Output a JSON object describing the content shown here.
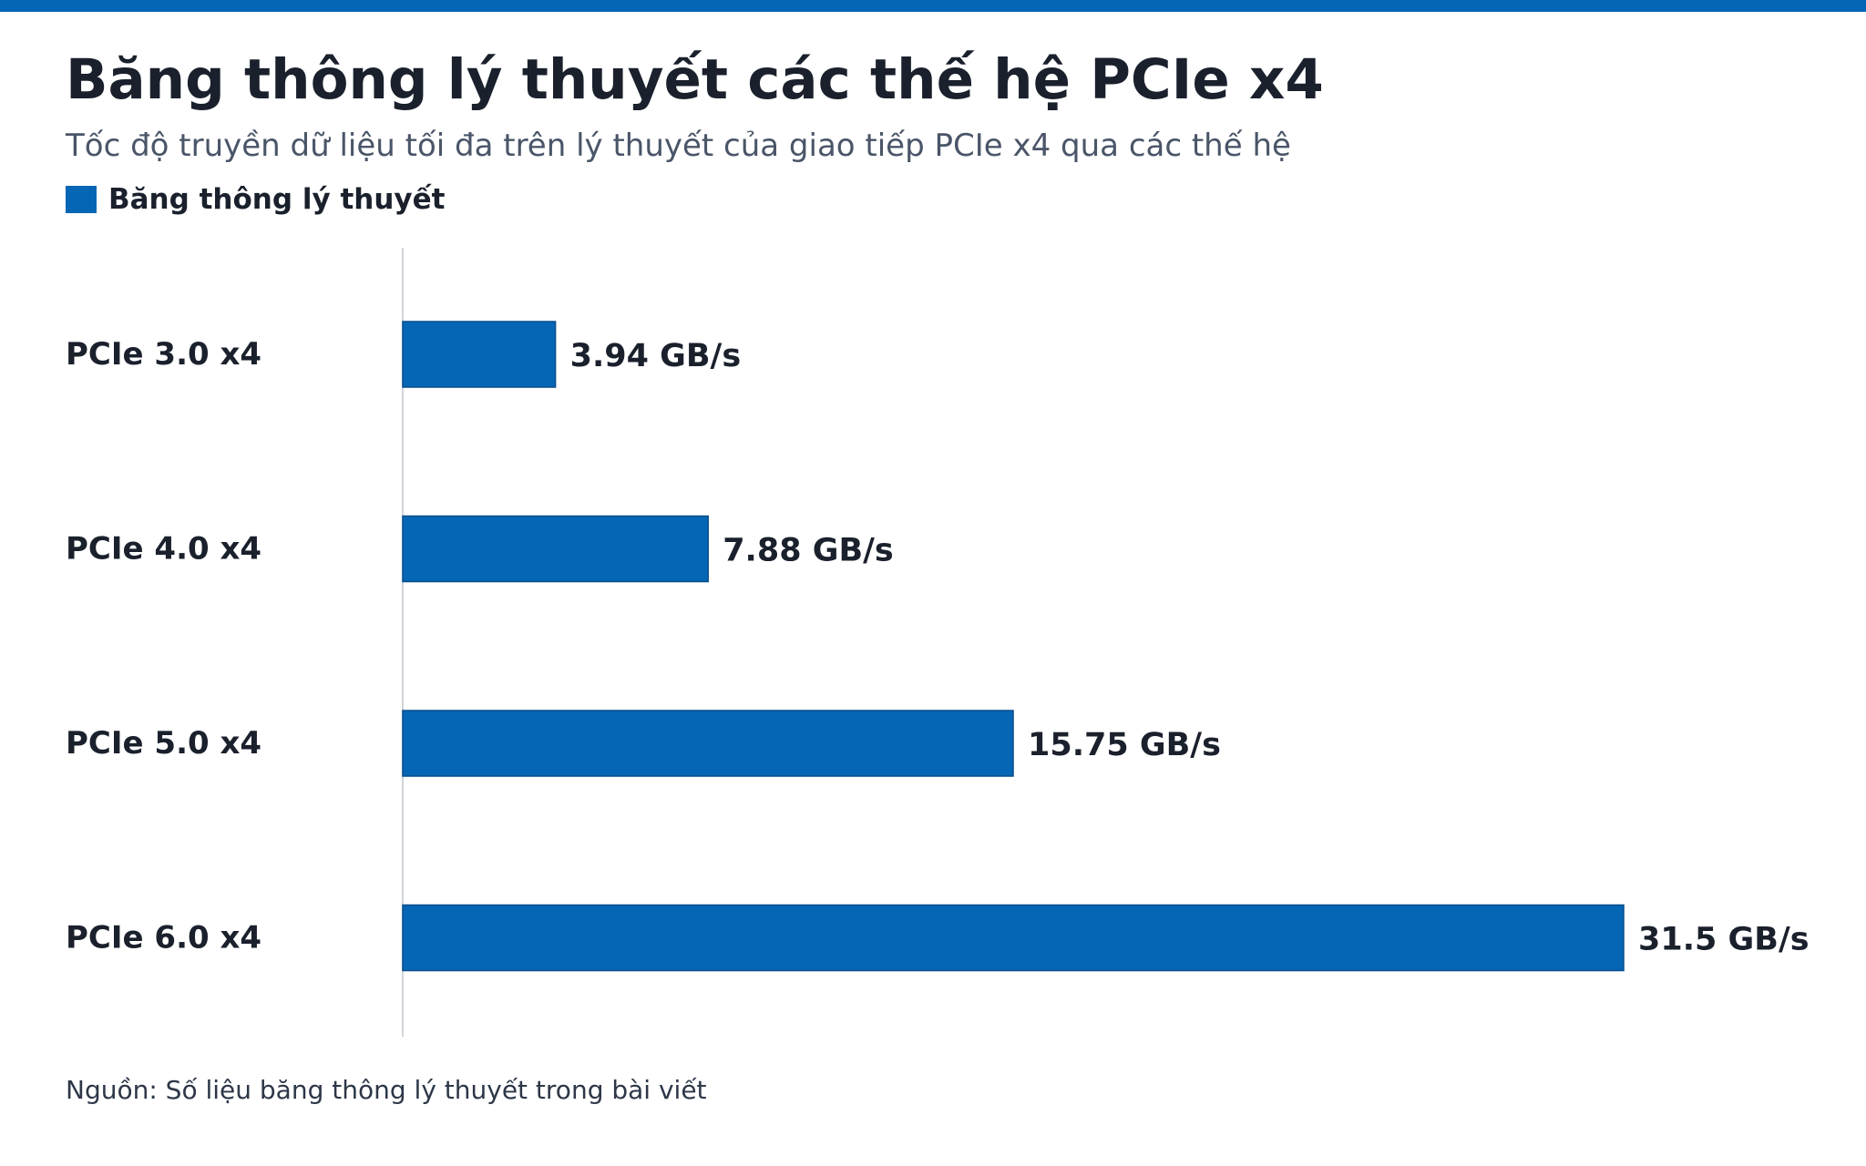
{
  "colors": {
    "accent": "#0566b5",
    "axis": "#d0d4da",
    "text": "#1a202c",
    "subtext": "#4a5568"
  },
  "header": {
    "title": "Băng thông lý thuyết các thế hệ PCIe x4",
    "subtitle": "Tốc độ truyền dữ liệu tối đa trên lý thuyết của giao tiếp PCIe x4 qua các thế hệ"
  },
  "legend": {
    "label": "Băng thông lý thuyết"
  },
  "footer": {
    "source": "Nguồn: Số liệu băng thông lý thuyết trong bài viết"
  },
  "chart_data": {
    "type": "bar",
    "orientation": "horizontal",
    "categories": [
      "PCIe 3.0 x4",
      "PCIe 4.0 x4",
      "PCIe 5.0 x4",
      "PCIe 6.0 x4"
    ],
    "series": [
      {
        "name": "Băng thông lý thuyết",
        "values": [
          3.94,
          7.88,
          15.75,
          31.5
        ],
        "labels": [
          "3.94 GB/s",
          "7.88 GB/s",
          "15.75 GB/s",
          "31.5 GB/s"
        ]
      }
    ],
    "unit": "GB/s",
    "xlim": [
      0,
      31.5
    ],
    "grid": false,
    "legend_position": "top-left"
  }
}
